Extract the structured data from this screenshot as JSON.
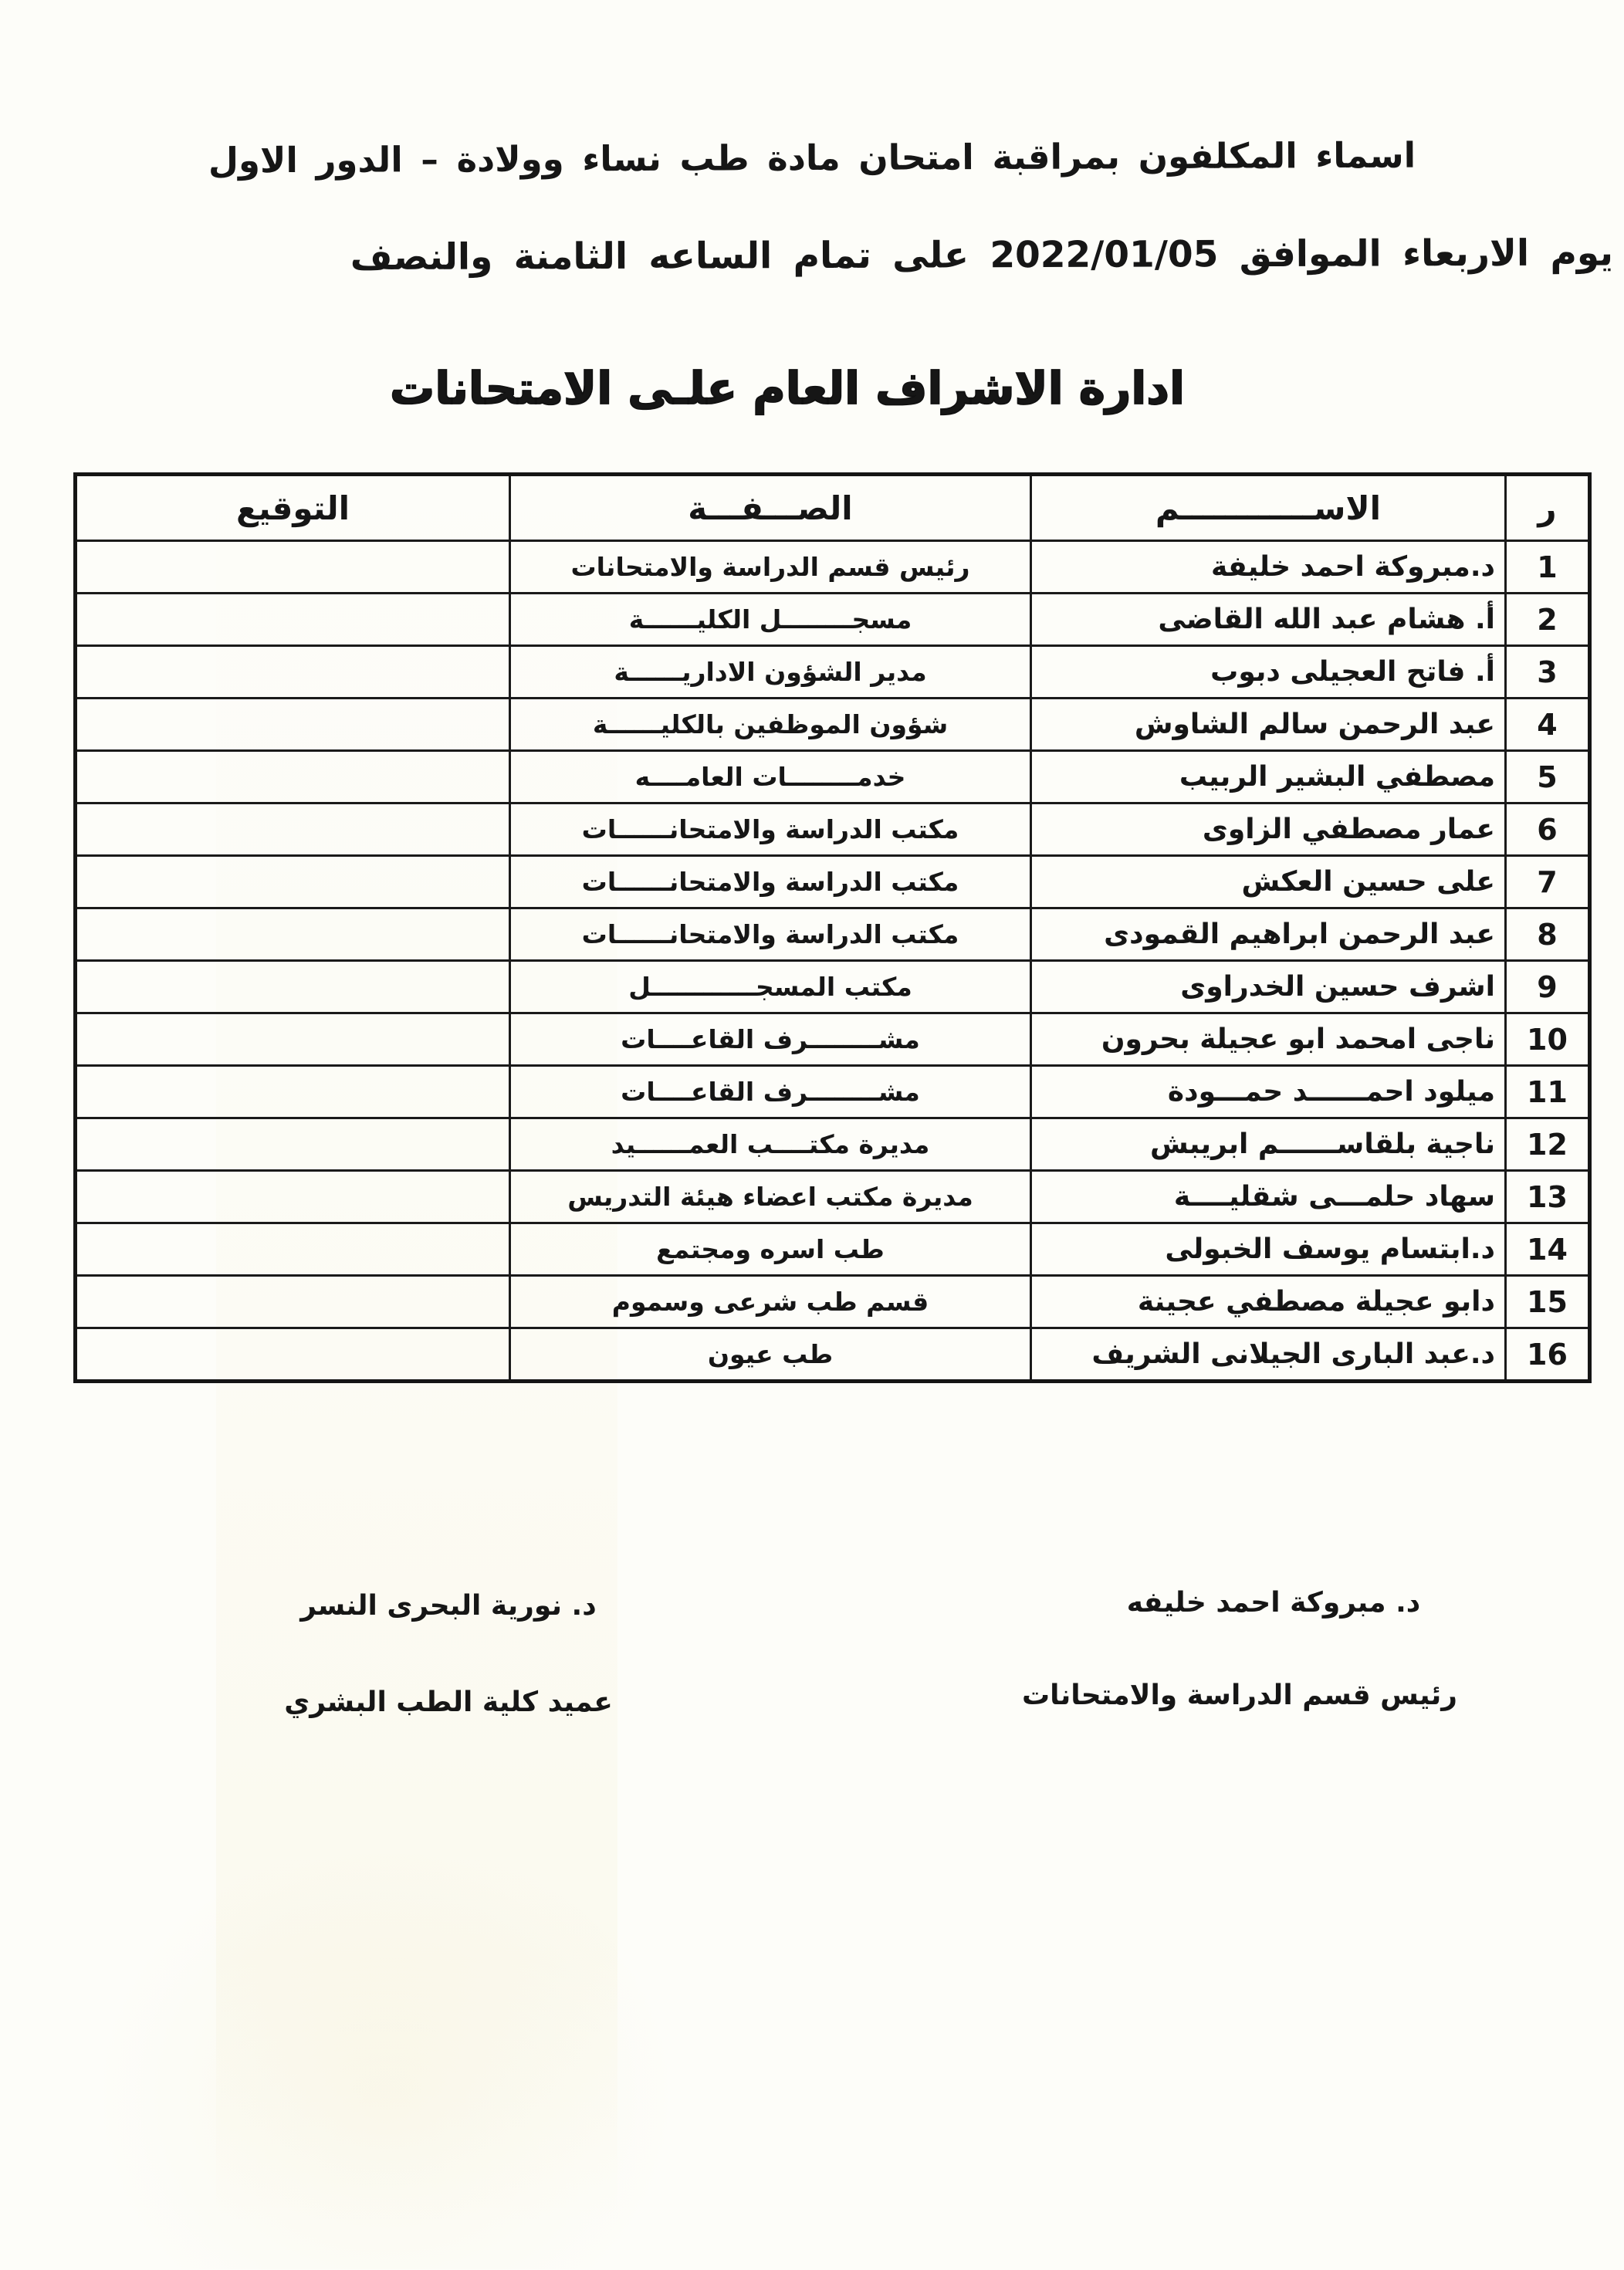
{
  "colors": {
    "ink": "#161616",
    "paper": "#fdfdf9"
  },
  "header": {
    "line1": "اسماء المكلفون بمراقبة امتحان مادة طب نساء وولادة – الدور الاول",
    "line2": "يوم الاربعاء الموافق 2022/01/05 على تمام الساعه الثامنة والنصف",
    "section_title": "ادارة الاشراف العام علـى الامتحانات"
  },
  "table": {
    "headers": {
      "index": "ر",
      "name": "الاســــــــــــم",
      "role": "الصـــفـــة",
      "signature": "التوقيع"
    },
    "rows": [
      {
        "index": "1",
        "name": "د.مبروكة احمد خليفة",
        "role": "رئيس قسم الدراسة والامتحانات",
        "signature": ""
      },
      {
        "index": "2",
        "name": "أ. هشام عبد الله القاضى",
        "role": "مسجــــــــل الكليــــــة",
        "signature": ""
      },
      {
        "index": "3",
        "name": "أ. فاتح العجيلى دبوب",
        "role": "مدير الشؤون الاداريــــــة",
        "signature": ""
      },
      {
        "index": "4",
        "name": "عبد الرحمن سالم الشاوش",
        "role": "شؤون الموظفين بالكليــــــة",
        "signature": ""
      },
      {
        "index": "5",
        "name": "مصطفي البشير الربيب",
        "role": "خدمــــــــات العامــــه",
        "signature": ""
      },
      {
        "index": "6",
        "name": "عمار مصطفي الزاوى",
        "role": "مكتب الدراسة والامتحانــــــات",
        "signature": ""
      },
      {
        "index": "7",
        "name": "على حسين العكش",
        "role": "مكتب الدراسة والامتحانــــــات",
        "signature": ""
      },
      {
        "index": "8",
        "name": "عبد الرحمن ابراهيم القمودى",
        "role": "مكتب الدراسة والامتحانــــــات",
        "signature": ""
      },
      {
        "index": "9",
        "name": "اشرف حسين الخدراوى",
        "role": "مكتب المسجــــــــــــل",
        "signature": ""
      },
      {
        "index": "10",
        "name": "ناجى امحمد ابو عجيلة بحرون",
        "role": "مشــــــــرف القاعــــات",
        "signature": ""
      },
      {
        "index": "11",
        "name": "ميلود احمــــــد حمـــودة",
        "role": "مشــــــــرف القاعــــات",
        "signature": ""
      },
      {
        "index": "12",
        "name": "ناجية بلقاســــــم ابريبش",
        "role": "مديرة مكتــــب العمــــــيد",
        "signature": ""
      },
      {
        "index": "13",
        "name": "سهاد حلمـــى شقليــــة",
        "role": "مديرة مكتب اعضاء هيئة التدريس",
        "signature": ""
      },
      {
        "index": "14",
        "name": "د.ابتسام يوسف الخبولى",
        "role": "طب اسره ومجتمع",
        "signature": ""
      },
      {
        "index": "15",
        "name": "دابو عجيلة  مصطفي عجينة",
        "role": "قسم طب شرعى وسموم",
        "signature": ""
      },
      {
        "index": "16",
        "name": "د.عبد البارى الجيلانى الشريف",
        "role": "طب عيون",
        "signature": ""
      }
    ]
  },
  "signatures": {
    "right": {
      "name": "د. مبروكة احمد خليفه",
      "title": "رئيس قسم الدراسة والامتحانات"
    },
    "left": {
      "name": "د. نورية البحرى النسر",
      "title": "عميد كلية الطب البشري"
    }
  }
}
